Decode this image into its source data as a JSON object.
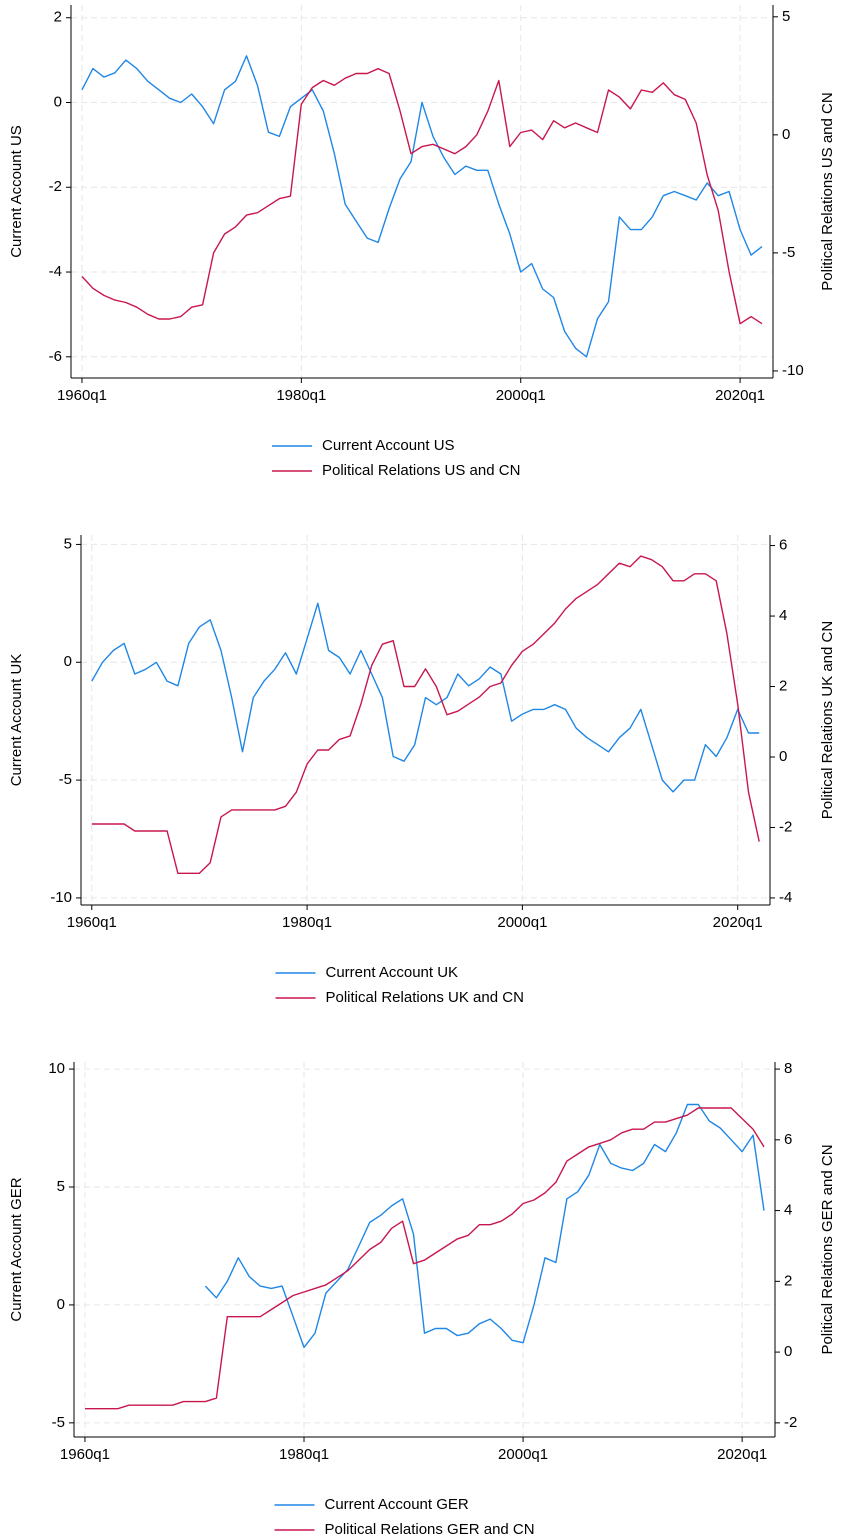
{
  "chart_data": [
    {
      "type": "line",
      "ylabel": "Current Account US",
      "y2label": "Political Relations US and CN",
      "grid": true,
      "x": [
        1960,
        1961,
        1962,
        1963,
        1964,
        1965,
        1966,
        1967,
        1968,
        1969,
        1970,
        1971,
        1972,
        1973,
        1974,
        1975,
        1976,
        1977,
        1978,
        1979,
        1980,
        1981,
        1982,
        1983,
        1984,
        1985,
        1986,
        1987,
        1988,
        1989,
        1990,
        1991,
        1992,
        1993,
        1994,
        1995,
        1996,
        1997,
        1998,
        1999,
        2000,
        2001,
        2002,
        2003,
        2004,
        2005,
        2006,
        2007,
        2008,
        2009,
        2010,
        2011,
        2012,
        2013,
        2014,
        2015,
        2016,
        2017,
        2018,
        2019,
        2020,
        2021,
        2022
      ],
      "xlim": [
        1959,
        2023
      ],
      "xticks": [
        {
          "value": 1960,
          "label": "1960q1"
        },
        {
          "value": 1980,
          "label": "1980q1"
        },
        {
          "value": 2000,
          "label": "2000q1"
        },
        {
          "value": 2020,
          "label": "2020q1"
        }
      ],
      "ylim": [
        -6.5,
        2.3
      ],
      "yticks": [
        -6,
        -4,
        -2,
        0,
        2
      ],
      "y2lim": [
        -10.3,
        5.5
      ],
      "y2ticks": [
        -10,
        -5,
        0,
        5
      ],
      "series": [
        {
          "name": "Current Account US",
          "color": "#1f87e6",
          "values": [
            0.3,
            0.8,
            0.6,
            0.7,
            1.0,
            0.8,
            0.5,
            0.3,
            0.1,
            0.0,
            0.2,
            -0.1,
            -0.5,
            0.3,
            0.5,
            1.1,
            0.4,
            -0.7,
            -0.8,
            -0.1,
            0.1,
            0.3,
            -0.2,
            -1.2,
            -2.4,
            -2.8,
            -3.2,
            -3.3,
            -2.5,
            -1.8,
            -1.4,
            0.0,
            -0.8,
            -1.3,
            -1.7,
            -1.5,
            -1.6,
            -1.6,
            -2.4,
            -3.1,
            -4.0,
            -3.8,
            -4.4,
            -4.6,
            -5.4,
            -5.8,
            -6.0,
            -5.1,
            -4.7,
            -2.7,
            -3.0,
            -3.0,
            -2.7,
            -2.2,
            -2.1,
            -2.2,
            -2.3,
            -1.9,
            -2.2,
            -2.1,
            -3.0,
            -3.6,
            -3.4
          ]
        },
        {
          "name": "Political Relations US and CN",
          "color": "#c8174d",
          "axis": "y2",
          "values": [
            -6.0,
            -6.5,
            -6.8,
            -7.0,
            -7.1,
            -7.3,
            -7.6,
            -7.8,
            -7.8,
            -7.7,
            -7.3,
            -7.2,
            -5.0,
            -4.2,
            -3.9,
            -3.4,
            -3.3,
            -3.0,
            -2.7,
            -2.6,
            1.3,
            2.0,
            2.3,
            2.1,
            2.4,
            2.6,
            2.6,
            2.8,
            2.6,
            1.0,
            -0.8,
            -0.5,
            -0.4,
            -0.6,
            -0.8,
            -0.5,
            0.0,
            1.0,
            2.3,
            -0.5,
            0.1,
            0.2,
            -0.2,
            0.6,
            0.3,
            0.5,
            0.3,
            0.1,
            1.9,
            1.6,
            1.1,
            1.9,
            1.8,
            2.2,
            1.7,
            1.5,
            0.5,
            -1.7,
            -3.2,
            -5.8,
            -8.0,
            -7.7,
            -8.0
          ]
        }
      ]
    },
    {
      "type": "line",
      "ylabel": "Current Account UK",
      "y2label": "Political Relations UK and CN",
      "grid": true,
      "x": [
        1960,
        1961,
        1962,
        1963,
        1964,
        1965,
        1966,
        1967,
        1968,
        1969,
        1970,
        1971,
        1972,
        1973,
        1974,
        1975,
        1976,
        1977,
        1978,
        1979,
        1980,
        1981,
        1982,
        1983,
        1984,
        1985,
        1986,
        1987,
        1988,
        1989,
        1990,
        1991,
        1992,
        1993,
        1994,
        1995,
        1996,
        1997,
        1998,
        1999,
        2000,
        2001,
        2002,
        2003,
        2004,
        2005,
        2006,
        2007,
        2008,
        2009,
        2010,
        2011,
        2012,
        2013,
        2014,
        2015,
        2016,
        2017,
        2018,
        2019,
        2020,
        2021,
        2022
      ],
      "xlim": [
        1959,
        2023
      ],
      "xticks": [
        {
          "value": 1960,
          "label": "1960q1"
        },
        {
          "value": 1980,
          "label": "1980q1"
        },
        {
          "value": 2000,
          "label": "2000q1"
        },
        {
          "value": 2020,
          "label": "2020q1"
        }
      ],
      "ylim": [
        -10.3,
        5.4
      ],
      "yticks": [
        -10,
        -5,
        0,
        5
      ],
      "y2lim": [
        -4.2,
        6.3
      ],
      "y2ticks": [
        -4,
        -2,
        0,
        2,
        4,
        6
      ],
      "series": [
        {
          "name": "Current Account UK",
          "color": "#1f87e6",
          "values": [
            -0.8,
            0.0,
            0.5,
            0.8,
            -0.5,
            -0.3,
            0.0,
            -0.8,
            -1.0,
            0.8,
            1.5,
            1.8,
            0.5,
            -1.5,
            -3.8,
            -1.5,
            -0.8,
            -0.3,
            0.4,
            -0.5,
            1.0,
            2.5,
            0.5,
            0.2,
            -0.5,
            0.5,
            -0.5,
            -1.5,
            -4.0,
            -4.2,
            -3.5,
            -1.5,
            -1.8,
            -1.5,
            -0.5,
            -1.0,
            -0.7,
            -0.2,
            -0.5,
            -2.5,
            -2.2,
            -2.0,
            -2.0,
            -1.8,
            -2.0,
            -2.8,
            -3.2,
            -3.5,
            -3.8,
            -3.2,
            -2.8,
            -2.0,
            -3.5,
            -5.0,
            -5.5,
            -5.0,
            -5.0,
            -3.5,
            -4.0,
            -3.2,
            -2.0,
            -3.0,
            -3.0
          ]
        },
        {
          "name": "Political Relations UK and CN",
          "color": "#c8174d",
          "axis": "y2",
          "values": [
            -1.9,
            -1.9,
            -1.9,
            -1.9,
            -2.1,
            -2.1,
            -2.1,
            -2.1,
            -3.3,
            -3.3,
            -3.3,
            -3.0,
            -1.7,
            -1.5,
            -1.5,
            -1.5,
            -1.5,
            -1.5,
            -1.4,
            -1.0,
            -0.2,
            0.2,
            0.2,
            0.5,
            0.6,
            1.5,
            2.6,
            3.2,
            3.3,
            2.0,
            2.0,
            2.5,
            2.0,
            1.2,
            1.3,
            1.5,
            1.7,
            2.0,
            2.1,
            2.6,
            3.0,
            3.2,
            3.5,
            3.8,
            4.2,
            4.5,
            4.7,
            4.9,
            5.2,
            5.5,
            5.4,
            5.7,
            5.6,
            5.4,
            5.0,
            5.0,
            5.2,
            5.2,
            5.0,
            3.5,
            1.5,
            -1.0,
            -2.4
          ]
        }
      ]
    },
    {
      "type": "line",
      "ylabel": "Current Account GER",
      "y2label": "Political Relations GER and CN",
      "grid": true,
      "x": [
        1960,
        1961,
        1962,
        1963,
        1964,
        1965,
        1966,
        1967,
        1968,
        1969,
        1970,
        1971,
        1972,
        1973,
        1974,
        1975,
        1976,
        1977,
        1978,
        1979,
        1980,
        1981,
        1982,
        1983,
        1984,
        1985,
        1986,
        1987,
        1988,
        1989,
        1990,
        1991,
        1992,
        1993,
        1994,
        1995,
        1996,
        1997,
        1998,
        1999,
        2000,
        2001,
        2002,
        2003,
        2004,
        2005,
        2006,
        2007,
        2008,
        2009,
        2010,
        2011,
        2012,
        2013,
        2014,
        2015,
        2016,
        2017,
        2018,
        2019,
        2020,
        2021,
        2022
      ],
      "xlim": [
        1959,
        2023
      ],
      "xticks": [
        {
          "value": 1960,
          "label": "1960q1"
        },
        {
          "value": 1980,
          "label": "1980q1"
        },
        {
          "value": 2000,
          "label": "2000q1"
        },
        {
          "value": 2020,
          "label": "2020q1"
        }
      ],
      "ylim": [
        -5.6,
        10.3
      ],
      "yticks": [
        -5,
        0,
        5,
        10
      ],
      "y2lim": [
        -2.4,
        8.2
      ],
      "y2ticks": [
        -2,
        0,
        2,
        4,
        6,
        8
      ],
      "series": [
        {
          "name": "Current Account GER",
          "color": "#1f87e6",
          "values": [
            null,
            null,
            null,
            null,
            null,
            null,
            null,
            null,
            null,
            null,
            null,
            0.8,
            0.3,
            1.0,
            2.0,
            1.2,
            0.8,
            0.7,
            0.8,
            -0.5,
            -1.8,
            -1.2,
            0.5,
            1.0,
            1.5,
            2.5,
            3.5,
            3.8,
            4.2,
            4.5,
            3.0,
            -1.2,
            -1.0,
            -1.0,
            -1.3,
            -1.2,
            -0.8,
            -0.6,
            -1.0,
            -1.5,
            -1.6,
            0.0,
            2.0,
            1.8,
            4.5,
            4.8,
            5.5,
            6.8,
            6.0,
            5.8,
            5.7,
            6.0,
            6.8,
            6.5,
            7.3,
            8.5,
            8.5,
            7.8,
            7.5,
            7.0,
            6.5,
            7.2,
            4.0
          ]
        },
        {
          "name": "Political Relations GER and CN",
          "color": "#c8174d",
          "axis": "y2",
          "values": [
            -1.6,
            -1.6,
            -1.6,
            -1.6,
            -1.5,
            -1.5,
            -1.5,
            -1.5,
            -1.5,
            -1.4,
            -1.4,
            -1.4,
            -1.3,
            1.0,
            1.0,
            1.0,
            1.0,
            1.2,
            1.4,
            1.6,
            1.7,
            1.8,
            1.9,
            2.1,
            2.3,
            2.6,
            2.9,
            3.1,
            3.5,
            3.7,
            2.5,
            2.6,
            2.8,
            3.0,
            3.2,
            3.3,
            3.6,
            3.6,
            3.7,
            3.9,
            4.2,
            4.3,
            4.5,
            4.8,
            5.4,
            5.6,
            5.8,
            5.9,
            6.0,
            6.2,
            6.3,
            6.3,
            6.5,
            6.5,
            6.6,
            6.7,
            6.9,
            6.9,
            6.9,
            6.9,
            6.6,
            6.3,
            5.8
          ]
        }
      ]
    }
  ]
}
